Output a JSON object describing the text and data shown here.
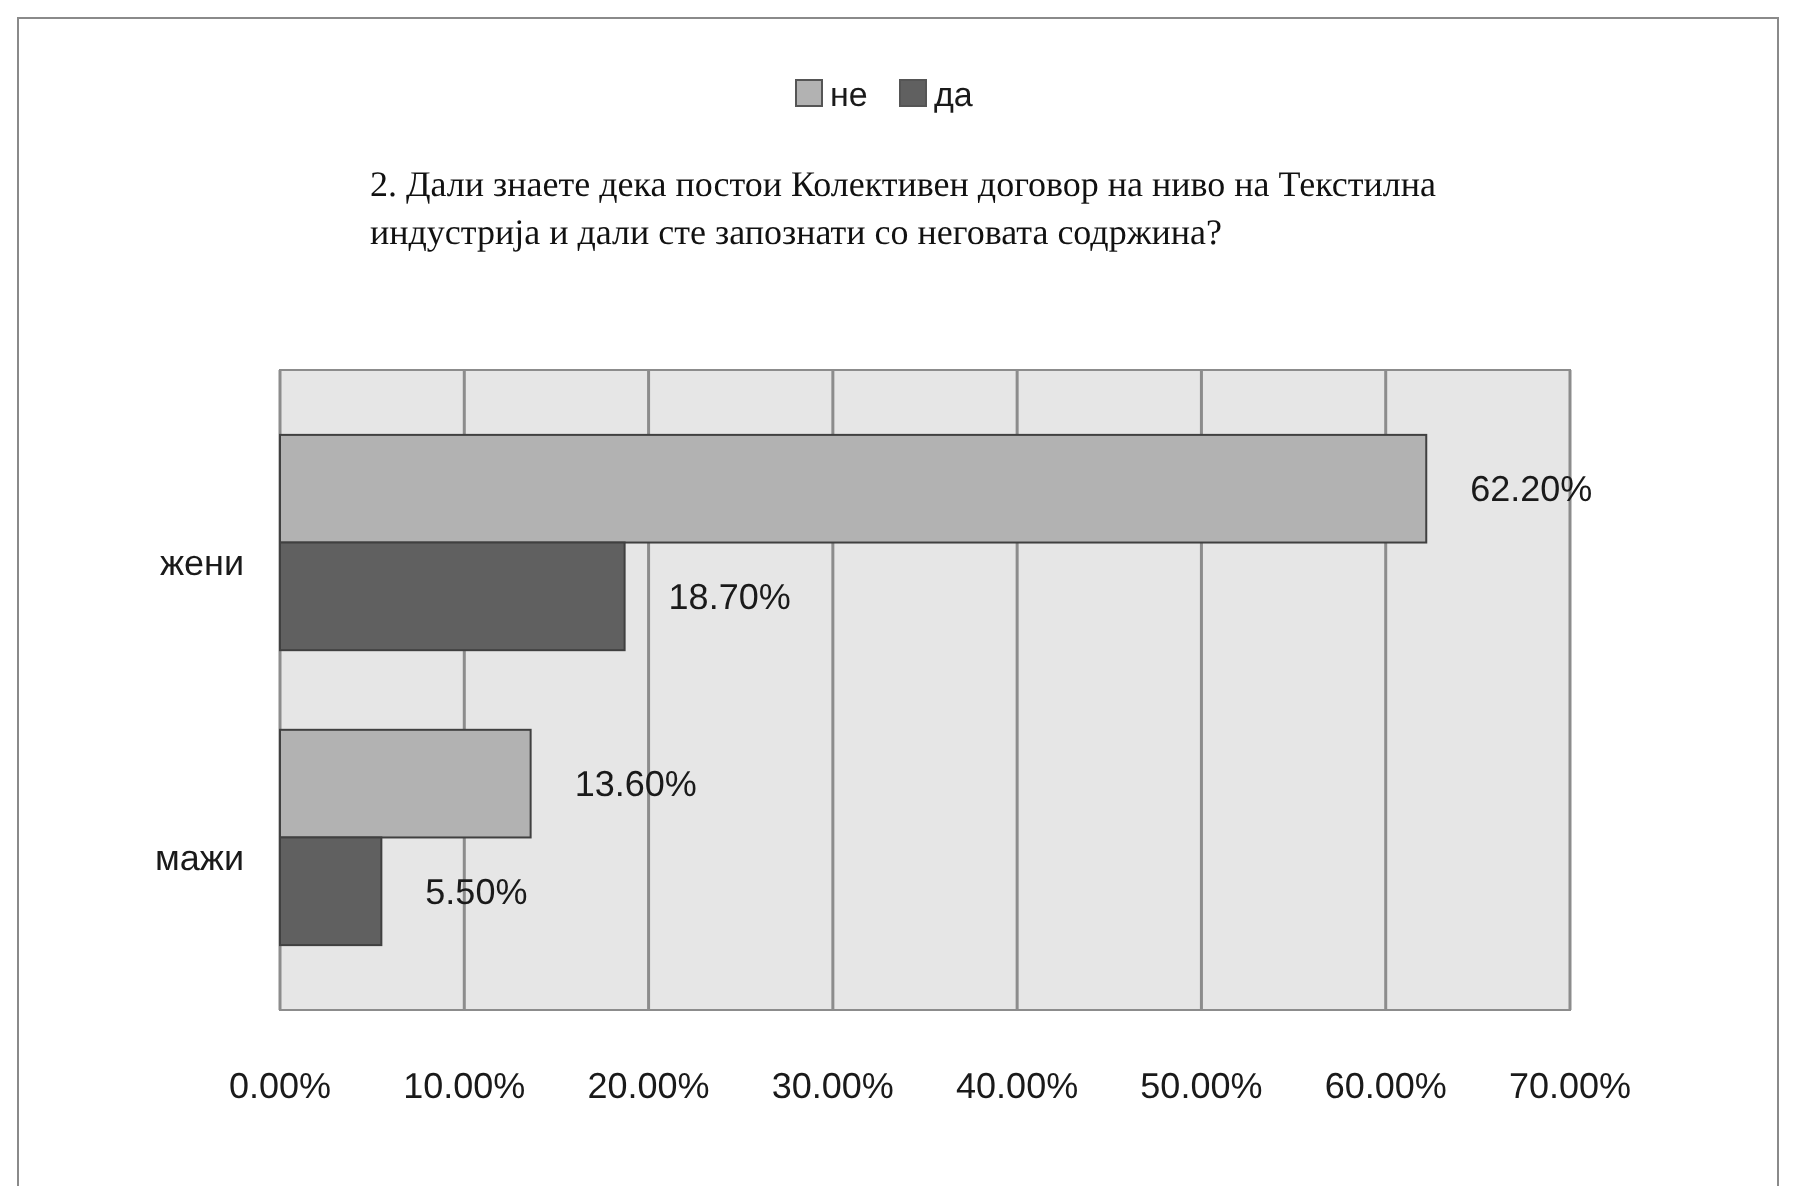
{
  "chart_data": {
    "type": "bar",
    "orientation": "horizontal",
    "title": "2. Дали знаете дека постои Колективен договор на ниво на Текстилна индустрија и дали сте запознати со неговата содржина?",
    "categories": [
      "жени",
      "мажи"
    ],
    "series": [
      {
        "name": "не",
        "color": "#b2b2b2",
        "values": [
          62.2,
          13.6
        ],
        "value_labels": [
          "62.20%",
          "13.60%"
        ]
      },
      {
        "name": "да",
        "color": "#606060",
        "values": [
          18.7,
          5.5
        ],
        "value_labels": [
          "18.70%",
          "5.50%"
        ]
      }
    ],
    "xlim": [
      0,
      70
    ],
    "xticks": [
      {
        "value": 0,
        "label": "0.00%"
      },
      {
        "value": 10,
        "label": "10.00%"
      },
      {
        "value": 20,
        "label": "20.00%"
      },
      {
        "value": 30,
        "label": "30.00%"
      },
      {
        "value": 40,
        "label": "40.00%"
      },
      {
        "value": 50,
        "label": "50.00%"
      },
      {
        "value": 60,
        "label": "60.00%"
      },
      {
        "value": 70,
        "label": "70.00%"
      }
    ],
    "grid": "x",
    "legend": "top"
  }
}
